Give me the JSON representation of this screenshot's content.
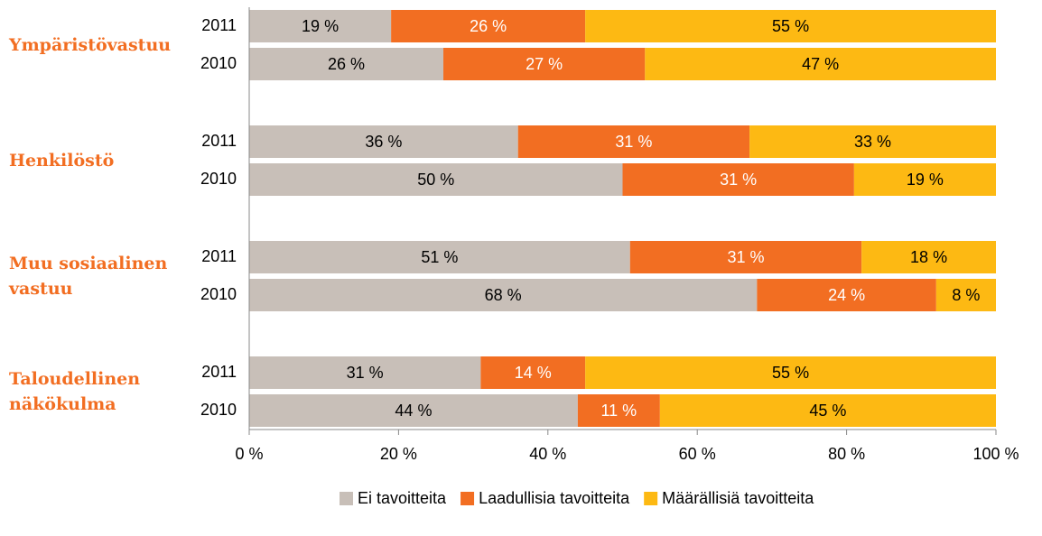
{
  "chart_data": {
    "type": "bar",
    "orientation": "horizontal",
    "stacked": true,
    "groups": [
      "Ympäristövastuu",
      "Henkilöstö",
      "Muu sosiaalinen vastuu",
      "Taloudellinen näkökulma"
    ],
    "group_color": "#f26e22",
    "categories": [
      "2011",
      "2010",
      "2011",
      "2010",
      "2011",
      "2010",
      "2011",
      "2010"
    ],
    "series": [
      {
        "name": "Ei tavoitteita",
        "color": "#c8bfb8",
        "label_color": "#000000",
        "values": [
          19,
          26,
          36,
          50,
          51,
          68,
          31,
          44
        ],
        "value_labels": [
          "19 %",
          "26 %",
          "36 %",
          "50 %",
          "51 %",
          "68 %",
          "31 %",
          "44 %"
        ]
      },
      {
        "name": "Laadullisia tavoitteita",
        "color": "#f26e22",
        "label_color": "#ffffff",
        "values": [
          26,
          27,
          31,
          31,
          31,
          24,
          14,
          11
        ],
        "value_labels": [
          "26 %",
          "27 %",
          "31 %",
          "31 %",
          "31 %",
          "24 %",
          "14 %",
          "11 %"
        ]
      },
      {
        "name": "Määrällisiä tavoitteita",
        "color": "#fdb913",
        "label_color": "#000000",
        "values": [
          55,
          47,
          33,
          19,
          18,
          8,
          55,
          45
        ],
        "value_labels": [
          "55 %",
          "47 %",
          "33 %",
          "19 %",
          "18 %",
          "8 %",
          "55 %",
          "45 %"
        ]
      }
    ],
    "xlim": [
      0,
      100
    ],
    "xticks": [
      {
        "value": 0,
        "label": "0 %"
      },
      {
        "value": 20,
        "label": "20 %"
      },
      {
        "value": 40,
        "label": "40 %"
      },
      {
        "value": 60,
        "label": "60 %"
      },
      {
        "value": 80,
        "label": "80 %"
      },
      {
        "value": 100,
        "label": "100 %"
      }
    ],
    "legend": "bottom"
  }
}
